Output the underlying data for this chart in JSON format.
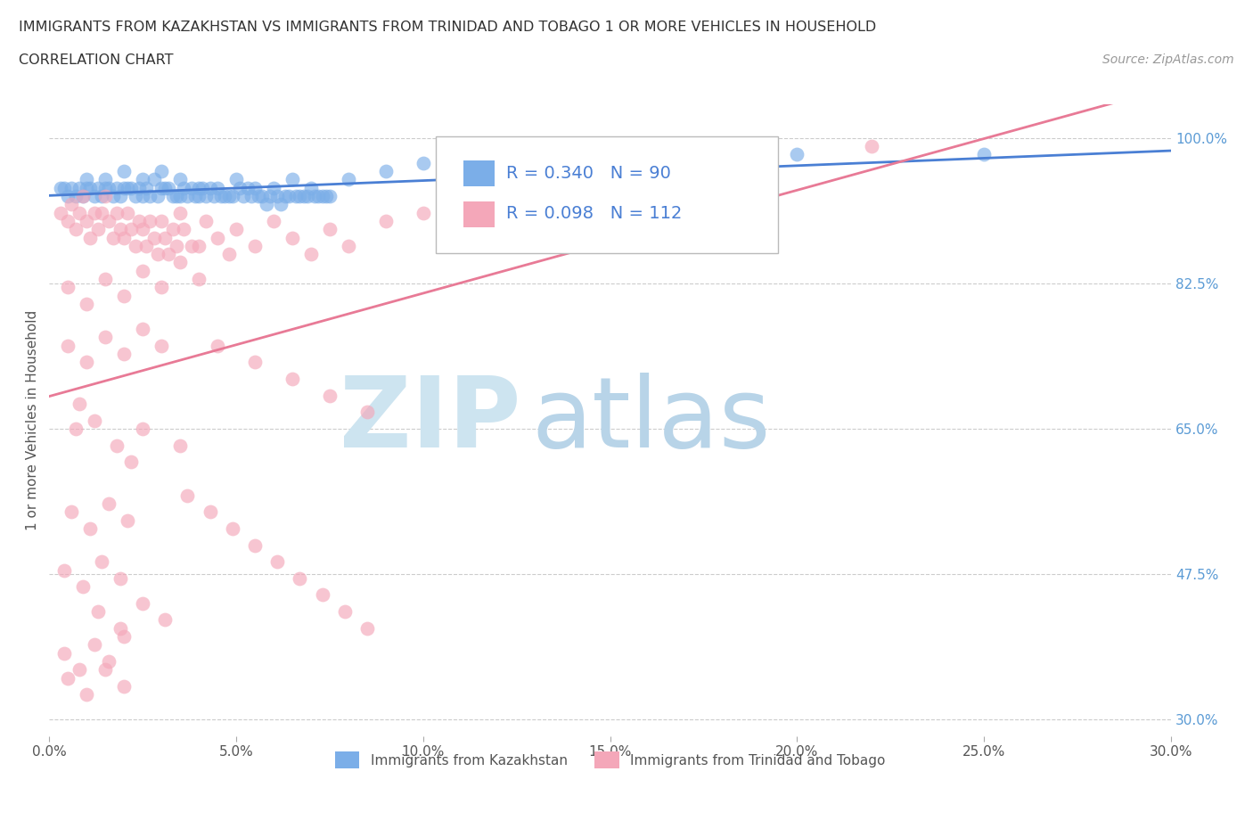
{
  "title_line1": "IMMIGRANTS FROM KAZAKHSTAN VS IMMIGRANTS FROM TRINIDAD AND TOBAGO 1 OR MORE VEHICLES IN HOUSEHOLD",
  "title_line2": "CORRELATION CHART",
  "source_text": "Source: ZipAtlas.com",
  "ylabel": "1 or more Vehicles in Household",
  "xlim": [
    0.0,
    30.0
  ],
  "ylim": [
    28.0,
    104.0
  ],
  "yticks": [
    30.0,
    47.5,
    65.0,
    82.5,
    100.0
  ],
  "xticks": [
    0.0,
    5.0,
    10.0,
    15.0,
    20.0,
    25.0,
    30.0
  ],
  "kaz_color": "#7baee8",
  "tt_color": "#f4a7b9",
  "kaz_line_color": "#4a7fd4",
  "tt_line_color": "#e87a96",
  "watermark_zip_color": "#cde4f0",
  "watermark_atlas_color": "#b8d4e8",
  "R_kaz": 0.34,
  "N_kaz": 90,
  "R_tt": 0.098,
  "N_tt": 112,
  "legend_bottom_labels": [
    "Immigrants from Kazakhstan",
    "Immigrants from Trinidad and Tobago"
  ],
  "legend_bottom_colors": [
    "#7baee8",
    "#f4a7b9"
  ],
  "kaz_x": [
    0.3,
    0.4,
    0.5,
    0.6,
    0.7,
    0.8,
    0.9,
    1.0,
    1.0,
    1.1,
    1.2,
    1.3,
    1.4,
    1.5,
    1.5,
    1.6,
    1.7,
    1.8,
    1.9,
    2.0,
    2.0,
    2.1,
    2.2,
    2.3,
    2.4,
    2.5,
    2.5,
    2.6,
    2.7,
    2.8,
    2.9,
    3.0,
    3.0,
    3.1,
    3.2,
    3.3,
    3.4,
    3.5,
    3.5,
    3.6,
    3.7,
    3.8,
    3.9,
    4.0,
    4.0,
    4.1,
    4.2,
    4.3,
    4.4,
    4.5,
    4.6,
    4.7,
    4.8,
    4.9,
    5.0,
    5.1,
    5.2,
    5.3,
    5.4,
    5.5,
    5.6,
    5.7,
    5.8,
    5.9,
    6.0,
    6.1,
    6.2,
    6.3,
    6.4,
    6.5,
    6.6,
    6.7,
    6.8,
    6.9,
    7.0,
    7.1,
    7.2,
    7.3,
    7.4,
    7.5,
    8.0,
    9.0,
    10.0,
    11.0,
    12.0,
    13.0,
    14.0,
    15.0,
    20.0,
    25.0
  ],
  "kaz_y": [
    94,
    94,
    93,
    94,
    93,
    94,
    93,
    95,
    94,
    94,
    93,
    94,
    93,
    95,
    94,
    94,
    93,
    94,
    93,
    96,
    94,
    94,
    94,
    93,
    94,
    95,
    93,
    94,
    93,
    95,
    93,
    94,
    96,
    94,
    94,
    93,
    93,
    95,
    93,
    94,
    93,
    94,
    93,
    94,
    93,
    94,
    93,
    94,
    93,
    94,
    93,
    93,
    93,
    93,
    95,
    94,
    93,
    94,
    93,
    94,
    93,
    93,
    92,
    93,
    94,
    93,
    92,
    93,
    93,
    95,
    93,
    93,
    93,
    93,
    94,
    93,
    93,
    93,
    93,
    93,
    95,
    96,
    97,
    97,
    97,
    96,
    96,
    97,
    98,
    98
  ],
  "tt_x": [
    0.3,
    0.5,
    0.6,
    0.7,
    0.8,
    0.9,
    1.0,
    1.1,
    1.2,
    1.3,
    1.4,
    1.5,
    1.6,
    1.7,
    1.8,
    1.9,
    2.0,
    2.1,
    2.2,
    2.3,
    2.4,
    2.5,
    2.6,
    2.7,
    2.8,
    2.9,
    3.0,
    3.1,
    3.2,
    3.3,
    3.4,
    3.5,
    3.6,
    3.8,
    4.0,
    4.2,
    4.5,
    4.8,
    5.0,
    5.5,
    6.0,
    6.5,
    7.0,
    7.5,
    8.0,
    9.0,
    10.0,
    11.0,
    12.0,
    13.0,
    14.0,
    15.0,
    17.0,
    19.0,
    22.0,
    0.5,
    1.0,
    1.5,
    2.0,
    2.5,
    3.0,
    3.5,
    4.0,
    0.5,
    1.0,
    1.5,
    2.0,
    2.5,
    3.0,
    0.8,
    1.2,
    1.8,
    2.2,
    0.6,
    1.1,
    1.6,
    2.1,
    0.4,
    0.9,
    1.4,
    1.9,
    0.4,
    0.8,
    1.2,
    1.6,
    2.0,
    0.5,
    1.0,
    1.5,
    2.0,
    2.5,
    3.5,
    4.5,
    5.5,
    6.5,
    7.5,
    8.5,
    0.7,
    1.3,
    1.9,
    2.5,
    3.1,
    3.7,
    4.3,
    4.9,
    5.5,
    6.1,
    6.7,
    7.3,
    7.9,
    8.5
  ],
  "tt_y": [
    91,
    90,
    92,
    89,
    91,
    93,
    90,
    88,
    91,
    89,
    91,
    93,
    90,
    88,
    91,
    89,
    88,
    91,
    89,
    87,
    90,
    89,
    87,
    90,
    88,
    86,
    90,
    88,
    86,
    89,
    87,
    91,
    89,
    87,
    87,
    90,
    88,
    86,
    89,
    87,
    90,
    88,
    86,
    89,
    87,
    90,
    91,
    92,
    90,
    88,
    91,
    89,
    92,
    95,
    99,
    82,
    80,
    83,
    81,
    84,
    82,
    85,
    83,
    75,
    73,
    76,
    74,
    77,
    75,
    68,
    66,
    63,
    61,
    55,
    53,
    56,
    54,
    48,
    46,
    49,
    47,
    38,
    36,
    39,
    37,
    40,
    35,
    33,
    36,
    34,
    65,
    63,
    75,
    73,
    71,
    69,
    67,
    65,
    43,
    41,
    44,
    42,
    57,
    55,
    53,
    51,
    49,
    47,
    45,
    43,
    41,
    39
  ]
}
